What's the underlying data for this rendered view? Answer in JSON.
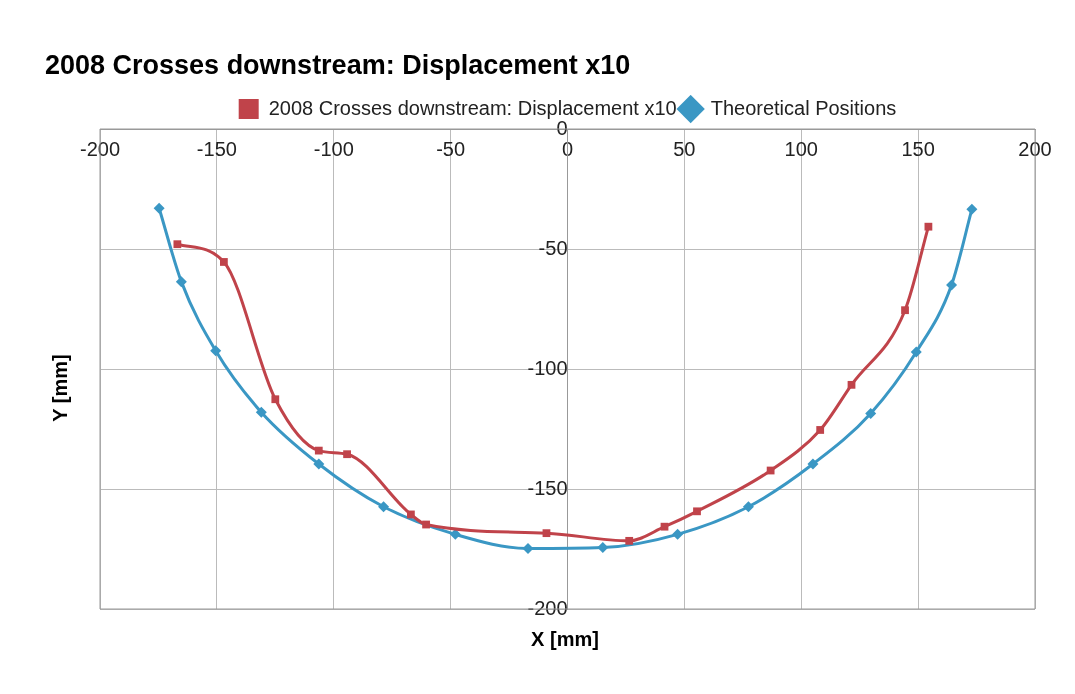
{
  "chart_data": {
    "type": "line",
    "title": "2008 Crosses downstream: Displacement x10",
    "xlabel": "X [mm]",
    "ylabel": "Y [mm]",
    "xlim": [
      -200,
      200
    ],
    "xticks": [
      -200,
      -150,
      -100,
      -50,
      0,
      50,
      100,
      150,
      200
    ],
    "ylim": [
      -200,
      0
    ],
    "yticks": [
      -200,
      -150,
      -100,
      -50,
      0
    ],
    "grid": true,
    "legend": "top",
    "line_style": "solid",
    "series": [
      {
        "name": "Theoretical Positions",
        "color": "#3a97c4",
        "marker": "diamond",
        "x": [
          -174.7,
          -165.2,
          -150.5,
          -131,
          -106.4,
          -78.7,
          -48,
          -16.9,
          15.1,
          47.1,
          77.4,
          105,
          129.7,
          149.2,
          164.3,
          173
        ],
        "values": [
          -33,
          -63.6,
          -92.4,
          -118,
          -139.6,
          -157.4,
          -168.9,
          -174.8,
          -174.4,
          -168.9,
          -157.4,
          -139.6,
          -118.5,
          -92.9,
          -65,
          -33.4
        ]
      },
      {
        "name": "2008 Crosses downstream: Displacement x10",
        "color": "#c0434a",
        "marker": "square",
        "x": [
          -166.9,
          -147,
          -125,
          -106.4,
          -94.3,
          -67,
          -60.5,
          -9,
          26.4,
          41.5,
          55.4,
          86.9,
          108.1,
          121.5,
          144.4,
          154.4
        ],
        "values": [
          -48,
          -55.4,
          -112.6,
          -134,
          -135.5,
          -160.6,
          -164.8,
          -168.4,
          -171.6,
          -165.7,
          -159.3,
          -142.3,
          -125.4,
          -106.6,
          -75.5,
          -40.7
        ]
      }
    ]
  }
}
